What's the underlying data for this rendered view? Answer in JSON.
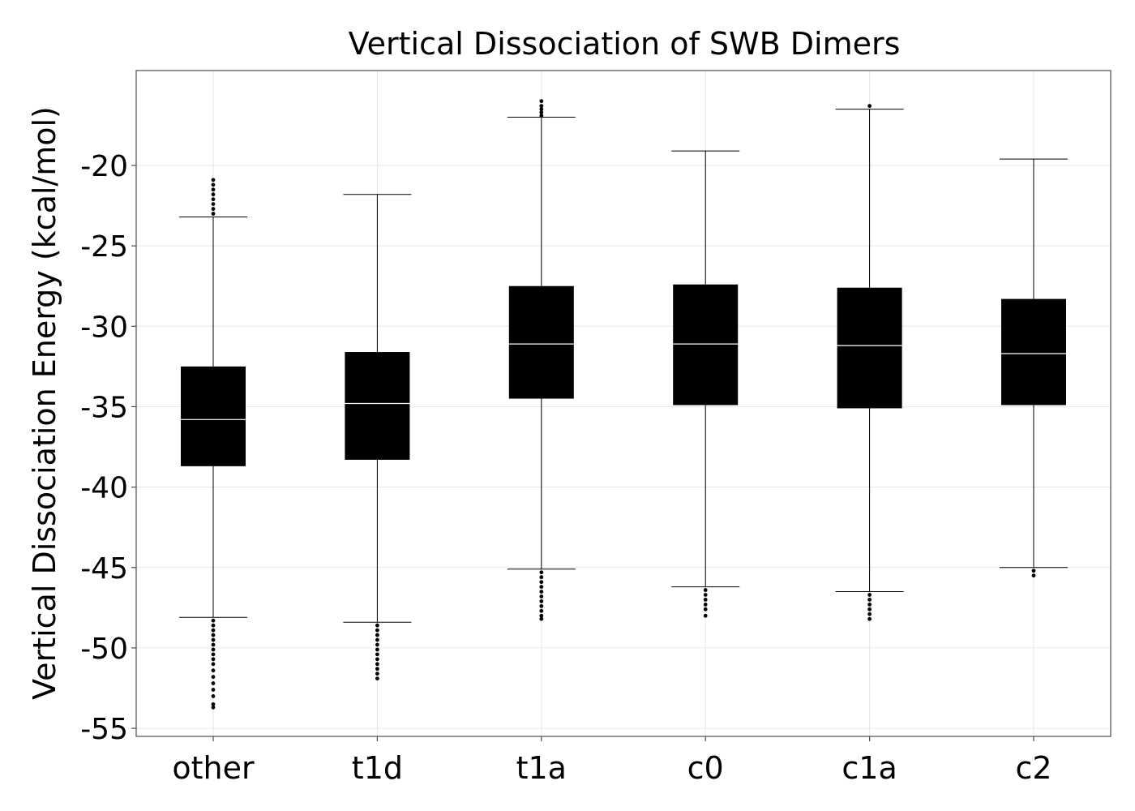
{
  "chart_data": {
    "type": "boxplot",
    "title": "Vertical Dissociation of SWB Dimers",
    "xlabel": "",
    "ylabel": "Vertical Dissociation Energy (kcal/mol)",
    "ylim": [
      -55.5,
      -14.1
    ],
    "yticks": [
      -20,
      -25,
      -30,
      -35,
      -40,
      -45,
      -50,
      -55
    ],
    "grid": true,
    "colors": {
      "box": "#000000",
      "median": "#ffffff",
      "grid": "#e6e6e6",
      "frame": "#4d4d4d"
    },
    "categories": [
      "other",
      "t1d",
      "t1a",
      "c0",
      "c1a",
      "c2"
    ],
    "boxes": [
      {
        "name": "other",
        "whisker_low": -48.1,
        "q1": -38.7,
        "median": -35.8,
        "q3": -32.5,
        "whisker_high": -23.2,
        "outliers": [
          -20.9,
          -21.2,
          -21.5,
          -21.8,
          -22.1,
          -22.4,
          -22.7,
          -23.0,
          -48.3,
          -48.6,
          -48.9,
          -49.2,
          -49.5,
          -49.8,
          -50.1,
          -50.4,
          -50.7,
          -51.0,
          -51.4,
          -51.8,
          -52.2,
          -52.6,
          -53.0,
          -53.5,
          -53.7
        ]
      },
      {
        "name": "t1d",
        "whisker_low": -48.4,
        "q1": -38.3,
        "median": -34.8,
        "q3": -31.6,
        "whisker_high": -21.8,
        "outliers": [
          -48.6,
          -48.9,
          -49.2,
          -49.5,
          -49.8,
          -50.1,
          -50.4,
          -50.7,
          -51.0,
          -51.3,
          -51.6,
          -51.9
        ]
      },
      {
        "name": "t1a",
        "whisker_low": -45.1,
        "q1": -34.5,
        "median": -31.1,
        "q3": -27.5,
        "whisker_high": -17.0,
        "outliers": [
          -16.0,
          -16.3,
          -16.5,
          -16.7,
          -16.9,
          -45.3,
          -45.6,
          -45.9,
          -46.2,
          -46.5,
          -46.8,
          -47.1,
          -47.4,
          -47.7,
          -48.0,
          -48.2
        ]
      },
      {
        "name": "c0",
        "whisker_low": -46.2,
        "q1": -34.9,
        "median": -31.1,
        "q3": -27.4,
        "whisker_high": -19.1,
        "outliers": [
          -46.4,
          -46.7,
          -47.0,
          -47.3,
          -47.6,
          -48.0
        ]
      },
      {
        "name": "c1a",
        "whisker_low": -46.5,
        "q1": -35.1,
        "median": -31.2,
        "q3": -27.6,
        "whisker_high": -16.5,
        "outliers": [
          -16.3,
          -46.7,
          -47.0,
          -47.3,
          -47.6,
          -47.9,
          -48.2
        ]
      },
      {
        "name": "c2",
        "whisker_low": -45.0,
        "q1": -34.9,
        "median": -31.7,
        "q3": -28.3,
        "whisker_high": -19.6,
        "outliers": [
          -45.2,
          -45.5
        ]
      }
    ]
  }
}
